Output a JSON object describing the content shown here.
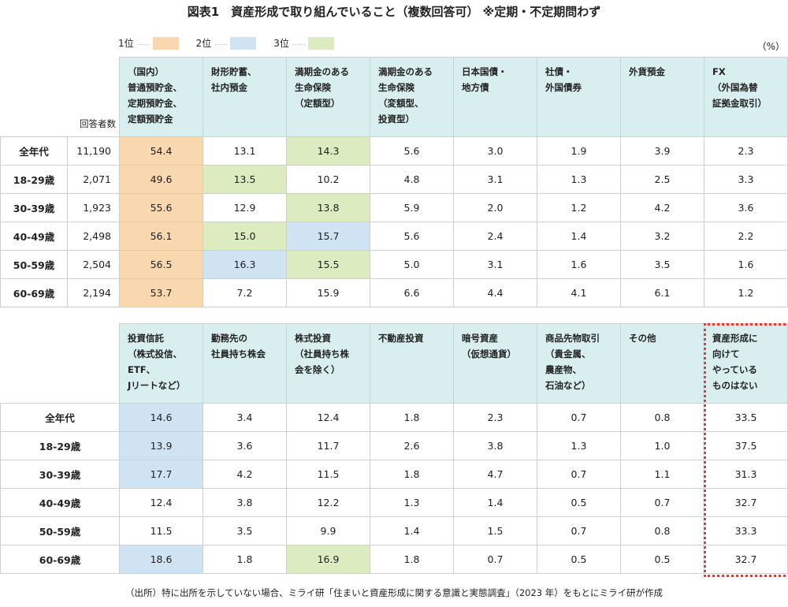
{
  "title": "図表1　資産形成で取り組んでいること（複数回答可） ※定期・不定期問わず",
  "legend": [
    {
      "label": "1位",
      "color": "#f9d8b0"
    },
    {
      "label": "2位",
      "color": "#cfe3f3"
    },
    {
      "label": "3位",
      "color": "#dcecc0"
    }
  ],
  "unit": "（%）",
  "respondents_label": "回答者数",
  "rows": [
    "全年代",
    "18-29歳",
    "30-39歳",
    "40-49歳",
    "50-59歳",
    "60-69歳"
  ],
  "respondents": [
    "11,190",
    "2,071",
    "1,923",
    "2,498",
    "2,504",
    "2,194"
  ],
  "table1": {
    "headers": [
      "（国内）\n普通預貯金、\n定期預貯金、\n定額預貯金",
      "財形貯蓄、\n社内預金",
      "満期金のある\n生命保険\n（定額型）",
      "満期金のある\n生命保険\n（変額型、\n 投資型）",
      "日本国債・\n地方債",
      "社債・\n外国債券",
      "外貨預金",
      "FX\n（外国為替\n 証拠金取引）"
    ],
    "values": [
      [
        "54.4",
        "13.1",
        "14.3",
        "5.6",
        "3.0",
        "1.9",
        "3.9",
        "2.3"
      ],
      [
        "49.6",
        "13.5",
        "10.2",
        "4.8",
        "3.1",
        "1.3",
        "2.5",
        "3.3"
      ],
      [
        "55.6",
        "12.9",
        "13.8",
        "5.9",
        "2.0",
        "1.2",
        "4.2",
        "3.6"
      ],
      [
        "56.1",
        "15.0",
        "15.7",
        "5.6",
        "2.4",
        "1.4",
        "3.2",
        "2.2"
      ],
      [
        "56.5",
        "16.3",
        "15.5",
        "5.0",
        "3.1",
        "1.6",
        "3.5",
        "1.6"
      ],
      [
        "53.7",
        "7.2",
        "15.9",
        "6.6",
        "4.4",
        "4.1",
        "6.1",
        "1.2"
      ]
    ],
    "ranks": [
      [
        1,
        0,
        3,
        0,
        0,
        0,
        0,
        0
      ],
      [
        1,
        3,
        0,
        0,
        0,
        0,
        0,
        0
      ],
      [
        1,
        0,
        3,
        0,
        0,
        0,
        0,
        0
      ],
      [
        1,
        3,
        2,
        0,
        0,
        0,
        0,
        0
      ],
      [
        1,
        2,
        3,
        0,
        0,
        0,
        0,
        0
      ],
      [
        1,
        0,
        0,
        0,
        0,
        0,
        0,
        0
      ]
    ]
  },
  "table2": {
    "headers": [
      "投資信託\n（株式投信、\n ETF、\nJリートなど）",
      "勤務先の\n社員持ち株会",
      "株式投資\n（社員持ち株\n 会を除く）",
      "不動産投資",
      "暗号資産\n（仮想通貨）",
      "商品先物取引\n（貴金属、\n 農産物、\n 石油など）",
      "その他",
      "資産形成に\n向けて\nやっている\nものはない"
    ],
    "values": [
      [
        "14.6",
        "3.4",
        "12.4",
        "1.8",
        "2.3",
        "0.7",
        "0.8",
        "33.5"
      ],
      [
        "13.9",
        "3.6",
        "11.7",
        "2.6",
        "3.8",
        "1.3",
        "1.0",
        "37.5"
      ],
      [
        "17.7",
        "4.2",
        "11.5",
        "1.8",
        "4.7",
        "0.7",
        "1.1",
        "31.3"
      ],
      [
        "12.4",
        "3.8",
        "12.2",
        "1.3",
        "1.4",
        "0.5",
        "0.7",
        "32.7"
      ],
      [
        "11.5",
        "3.5",
        "9.9",
        "1.4",
        "1.5",
        "0.7",
        "0.8",
        "33.3"
      ],
      [
        "18.6",
        "1.8",
        "16.9",
        "1.8",
        "0.7",
        "0.5",
        "0.5",
        "32.7"
      ]
    ],
    "ranks": [
      [
        2,
        0,
        0,
        0,
        0,
        0,
        0,
        0
      ],
      [
        2,
        0,
        0,
        0,
        0,
        0,
        0,
        0
      ],
      [
        2,
        0,
        0,
        0,
        0,
        0,
        0,
        0
      ],
      [
        0,
        0,
        0,
        0,
        0,
        0,
        0,
        0
      ],
      [
        0,
        0,
        0,
        0,
        0,
        0,
        0,
        0
      ],
      [
        2,
        0,
        3,
        0,
        0,
        0,
        0,
        0
      ]
    ]
  },
  "footnote": "（出所）特に出所を示していない場合、ミライ研「住まいと資産形成に関する意識と実態調査」（2023 年）をもとにミライ研が作成"
}
